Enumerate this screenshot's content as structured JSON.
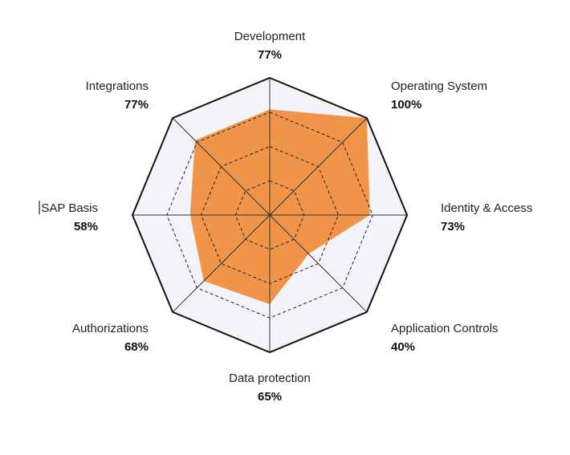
{
  "chart_data": {
    "type": "radar",
    "categories": [
      "Development",
      "Operating System",
      "Identity & Access",
      "Application Controls",
      "Data protection",
      "Authorizations",
      "SAP Basis",
      "Integrations"
    ],
    "values": [
      77,
      100,
      73,
      40,
      65,
      68,
      58,
      77
    ],
    "value_labels": [
      "77%",
      "100%",
      "73%",
      "40%",
      "65%",
      "68%",
      "58%",
      "77%"
    ],
    "range": [
      0,
      100
    ],
    "grid_rings": [
      25,
      50,
      75,
      100
    ],
    "colors": {
      "fill": "#F0944A",
      "background": "#F3F4FA",
      "axis": "#111111"
    }
  }
}
